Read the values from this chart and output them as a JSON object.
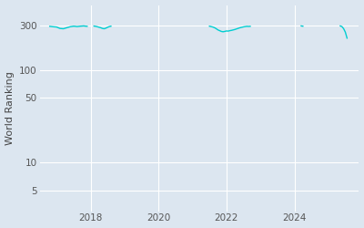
{
  "ylabel": "World Ranking",
  "line_color": "#00CED1",
  "background_color": "#dce6f0",
  "figure_facecolor": "#dce6f0",
  "yticks": [
    5,
    10,
    50,
    100,
    300
  ],
  "ylim_log": [
    3,
    500
  ],
  "xlim": [
    2016.5,
    2025.9
  ],
  "xticks": [
    2018,
    2020,
    2022,
    2024
  ],
  "segments": [
    {
      "x": [
        2016.8,
        2016.9,
        2017.0,
        2017.05,
        2017.1,
        2017.2,
        2017.3,
        2017.4,
        2017.5,
        2017.55,
        2017.6,
        2017.7,
        2017.8,
        2017.85,
        2017.9
      ],
      "y": [
        295,
        292,
        290,
        285,
        280,
        278,
        285,
        292,
        296,
        295,
        293,
        296,
        298,
        296,
        295
      ]
    },
    {
      "x": [
        2018.1,
        2018.15,
        2018.2,
        2018.3,
        2018.35,
        2018.4,
        2018.45,
        2018.5,
        2018.55,
        2018.6
      ],
      "y": [
        297,
        295,
        292,
        285,
        280,
        278,
        282,
        288,
        293,
        296
      ]
    },
    {
      "x": [
        2021.5,
        2021.55,
        2021.6,
        2021.65,
        2021.7,
        2021.75,
        2021.8,
        2021.85,
        2021.9,
        2021.95,
        2022.0,
        2022.05,
        2022.1,
        2022.15,
        2022.2,
        2022.25,
        2022.3,
        2022.35,
        2022.4,
        2022.45,
        2022.5,
        2022.55,
        2022.6,
        2022.65,
        2022.7
      ],
      "y": [
        296,
        293,
        290,
        285,
        278,
        270,
        265,
        260,
        258,
        260,
        263,
        262,
        265,
        267,
        270,
        273,
        277,
        281,
        285,
        288,
        291,
        293,
        295,
        294,
        295
      ]
    },
    {
      "x": [
        2024.2,
        2024.25
      ],
      "y": [
        298,
        296
      ]
    },
    {
      "x": [
        2025.35,
        2025.4,
        2025.45,
        2025.5,
        2025.55
      ],
      "y": [
        298,
        293,
        278,
        255,
        220
      ]
    }
  ]
}
